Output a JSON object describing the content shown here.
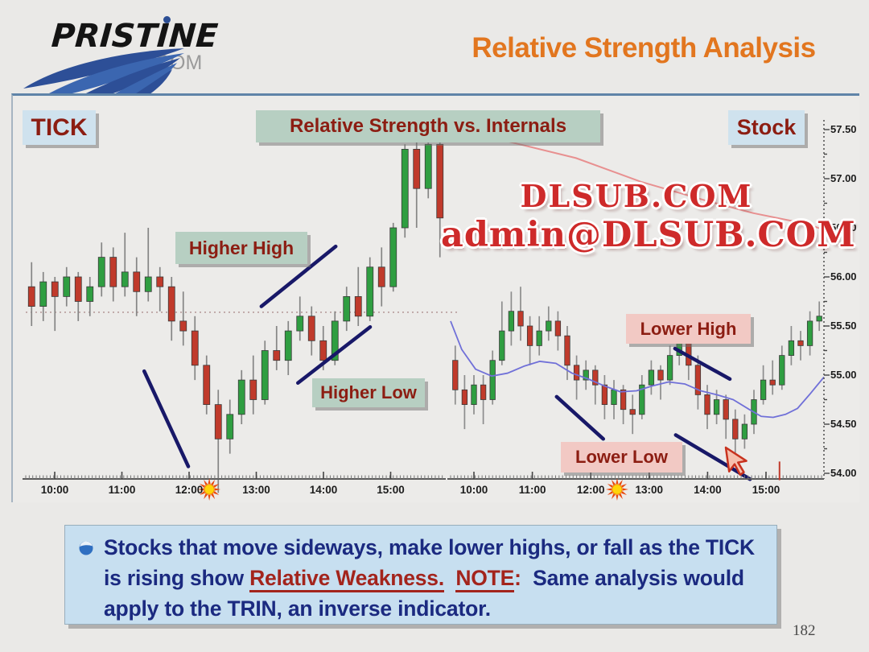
{
  "slide": {
    "page_number": "182"
  },
  "header": {
    "logo_text": "PRISTINE",
    "logo_suffix": ".COM",
    "title": "Relative Strength Analysis",
    "title_color": "#e2761f"
  },
  "watermark": {
    "line1": "DLSUB.COM",
    "line2": "admin@DLSUB.COM",
    "color": "#ce2a2a"
  },
  "labels": {
    "tick": "TICK",
    "center": "Relative Strength vs. Internals",
    "stock": "Stock",
    "higher_high": "Higher High",
    "higher_low": "Higher Low",
    "lower_high": "Lower High",
    "lower_low": "Lower Low"
  },
  "note": {
    "segment1": "Stocks that move sideways, make lower highs, or fall as the TICK is rising show ",
    "relative_weakness": "Relative Weakness.",
    "spacer1": "  ",
    "note_label": "NOTE",
    "colon": ":",
    "segment2": "  Same analysis would apply to the TRIN, an inverse indicator."
  },
  "chart_data": [
    {
      "type": "candlestick",
      "pane": "TICK (left pane)",
      "x_ticks": [
        "10:00",
        "11:00",
        "12:00",
        "13:00",
        "14:00",
        "15:00"
      ],
      "y_axis": "unlabeled",
      "dotted_level": 55.64,
      "sun_x_frac": 0.437,
      "candles": [
        [
          55.9,
          56.15,
          55.5,
          55.7
        ],
        [
          55.7,
          56.05,
          55.55,
          55.95
        ],
        [
          55.95,
          56.0,
          55.45,
          55.8
        ],
        [
          55.8,
          56.1,
          55.7,
          56.0
        ],
        [
          56.0,
          56.05,
          55.55,
          55.75
        ],
        [
          55.75,
          56.0,
          55.6,
          55.9
        ],
        [
          55.9,
          56.35,
          55.8,
          56.2
        ],
        [
          56.2,
          56.3,
          55.75,
          55.9
        ],
        [
          55.9,
          56.45,
          55.8,
          56.05
        ],
        [
          56.05,
          56.2,
          55.6,
          55.85
        ],
        [
          55.85,
          56.5,
          55.75,
          56.0
        ],
        [
          56.0,
          56.1,
          55.65,
          55.9
        ],
        [
          55.9,
          56.0,
          55.35,
          55.55
        ],
        [
          55.55,
          55.85,
          55.3,
          55.45
        ],
        [
          55.45,
          55.6,
          54.95,
          55.1
        ],
        [
          55.1,
          55.2,
          54.6,
          54.7
        ],
        [
          54.7,
          54.85,
          53.8,
          54.35
        ],
        [
          54.35,
          54.75,
          54.2,
          54.6
        ],
        [
          54.6,
          55.05,
          54.5,
          54.95
        ],
        [
          54.95,
          55.2,
          54.6,
          54.75
        ],
        [
          54.75,
          55.35,
          54.7,
          55.25
        ],
        [
          55.25,
          55.5,
          55.05,
          55.15
        ],
        [
          55.15,
          55.55,
          55.0,
          55.45
        ],
        [
          55.45,
          55.8,
          55.35,
          55.6
        ],
        [
          55.6,
          55.7,
          55.2,
          55.35
        ],
        [
          55.35,
          55.5,
          55.05,
          55.15
        ],
        [
          55.15,
          55.65,
          55.1,
          55.55
        ],
        [
          55.55,
          55.9,
          55.45,
          55.8
        ],
        [
          55.8,
          56.1,
          55.5,
          55.6
        ],
        [
          55.6,
          56.2,
          55.55,
          56.1
        ],
        [
          56.1,
          56.3,
          55.7,
          55.9
        ],
        [
          55.9,
          56.55,
          55.85,
          56.5
        ],
        [
          56.5,
          57.35,
          56.4,
          57.3
        ],
        [
          57.3,
          57.45,
          56.5,
          56.9
        ],
        [
          56.9,
          57.4,
          56.8,
          57.35
        ],
        [
          57.35,
          57.45,
          56.2,
          56.6
        ]
      ],
      "trend_lines": [
        {
          "name": "downtrend-into-low",
          "x1": 0.282,
          "p1": 55.04,
          "x2": 0.387,
          "p2": 54.07
        },
        {
          "name": "higher-high-line",
          "x1": 0.561,
          "p1": 55.7,
          "x2": 0.738,
          "p2": 56.31
        },
        {
          "name": "higher-low-line",
          "x1": 0.648,
          "p1": 54.92,
          "x2": 0.82,
          "p2": 55.49
        }
      ],
      "annotations": [
        "Higher High",
        "Higher Low"
      ]
    },
    {
      "type": "candlestick",
      "pane": "Stock (right pane)",
      "x_ticks": [
        "10:00",
        "11:00",
        "12:00",
        "13:00",
        "14:00",
        "15:00"
      ],
      "y_ticks": [
        "57.50",
        "57.00",
        "56.50",
        "56.00",
        "55.50",
        "55.00",
        "54.50",
        "54.00"
      ],
      "ylim": [
        54.0,
        57.6
      ],
      "sun_x_frac": 0.446,
      "candles": [
        [
          55.15,
          55.3,
          54.7,
          54.85
        ],
        [
          54.85,
          55.0,
          54.45,
          54.7
        ],
        [
          54.7,
          55.0,
          54.6,
          54.9
        ],
        [
          54.9,
          55.0,
          54.5,
          54.75
        ],
        [
          54.75,
          55.25,
          54.7,
          55.15
        ],
        [
          55.15,
          55.75,
          55.1,
          55.45
        ],
        [
          55.45,
          55.85,
          55.3,
          55.65
        ],
        [
          55.65,
          55.9,
          55.35,
          55.5
        ],
        [
          55.5,
          55.6,
          55.1,
          55.3
        ],
        [
          55.3,
          55.6,
          55.2,
          55.45
        ],
        [
          55.45,
          55.7,
          55.35,
          55.55
        ],
        [
          55.55,
          55.65,
          55.25,
          55.4
        ],
        [
          55.4,
          55.5,
          54.95,
          55.1
        ],
        [
          55.1,
          55.2,
          54.75,
          54.95
        ],
        [
          54.95,
          55.15,
          54.85,
          55.05
        ],
        [
          55.05,
          55.1,
          54.7,
          54.9
        ],
        [
          54.9,
          55.0,
          54.55,
          54.7
        ],
        [
          54.7,
          54.95,
          54.55,
          54.85
        ],
        [
          54.85,
          54.9,
          54.5,
          54.65
        ],
        [
          54.65,
          54.8,
          54.4,
          54.6
        ],
        [
          54.6,
          55.0,
          54.55,
          54.9
        ],
        [
          54.9,
          55.15,
          54.8,
          55.05
        ],
        [
          55.05,
          55.1,
          54.75,
          54.95
        ],
        [
          54.95,
          55.3,
          54.9,
          55.2
        ],
        [
          55.2,
          55.5,
          55.1,
          55.35
        ],
        [
          55.35,
          55.45,
          54.95,
          55.1
        ],
        [
          55.1,
          55.2,
          54.65,
          54.8
        ],
        [
          54.8,
          54.9,
          54.45,
          54.6
        ],
        [
          54.6,
          54.85,
          54.5,
          54.75
        ],
        [
          54.75,
          54.8,
          54.35,
          54.55
        ],
        [
          54.55,
          54.65,
          54.2,
          54.35
        ],
        [
          54.35,
          54.6,
          54.25,
          54.5
        ],
        [
          54.5,
          54.85,
          54.4,
          54.75
        ],
        [
          54.75,
          55.1,
          54.7,
          54.95
        ],
        [
          54.95,
          55.15,
          54.8,
          54.9
        ],
        [
          54.9,
          55.3,
          54.85,
          55.2
        ],
        [
          55.2,
          55.5,
          55.1,
          55.35
        ],
        [
          55.35,
          55.45,
          55.15,
          55.3
        ],
        [
          55.3,
          55.65,
          55.2,
          55.55
        ],
        [
          55.55,
          55.75,
          55.45,
          55.6
        ]
      ],
      "ma_line": [
        [
          0.0,
          55.55
        ],
        [
          0.03,
          55.26
        ],
        [
          0.067,
          55.06
        ],
        [
          0.11,
          54.99
        ],
        [
          0.153,
          55.02
        ],
        [
          0.196,
          55.09
        ],
        [
          0.239,
          55.14
        ],
        [
          0.282,
          55.12
        ],
        [
          0.325,
          55.02
        ],
        [
          0.369,
          54.96
        ],
        [
          0.412,
          54.89
        ],
        [
          0.455,
          54.83
        ],
        [
          0.498,
          54.84
        ],
        [
          0.541,
          54.89
        ],
        [
          0.584,
          54.93
        ],
        [
          0.627,
          54.91
        ],
        [
          0.67,
          54.84
        ],
        [
          0.713,
          54.8
        ],
        [
          0.757,
          54.75
        ],
        [
          0.8,
          54.65
        ],
        [
          0.832,
          54.58
        ],
        [
          0.864,
          54.57
        ],
        [
          0.897,
          54.6
        ],
        [
          0.929,
          54.66
        ],
        [
          0.961,
          54.8
        ],
        [
          1.0,
          54.98
        ]
      ],
      "red_line": [
        [
          0.142,
          57.39
        ],
        [
          0.336,
          57.21
        ],
        [
          0.509,
          56.97
        ],
        [
          0.681,
          56.78
        ],
        [
          0.81,
          56.65
        ],
        [
          0.953,
          56.54
        ],
        [
          1.0,
          56.48
        ]
      ],
      "trend_lines": [
        {
          "name": "early-downtrend",
          "x1": 0.284,
          "p1": 54.78,
          "x2": 0.409,
          "p2": 54.35
        },
        {
          "name": "lower-high-line",
          "x1": 0.601,
          "p1": 55.27,
          "x2": 0.748,
          "p2": 54.96
        },
        {
          "name": "lower-low-line",
          "x1": 0.603,
          "p1": 54.39,
          "x2": 0.802,
          "p2": 53.94
        }
      ],
      "red_tick": {
        "x_frac": 0.881,
        "p1": 54.12,
        "p2": 53.93
      },
      "annotations": [
        "Lower High",
        "Lower Low"
      ]
    }
  ]
}
